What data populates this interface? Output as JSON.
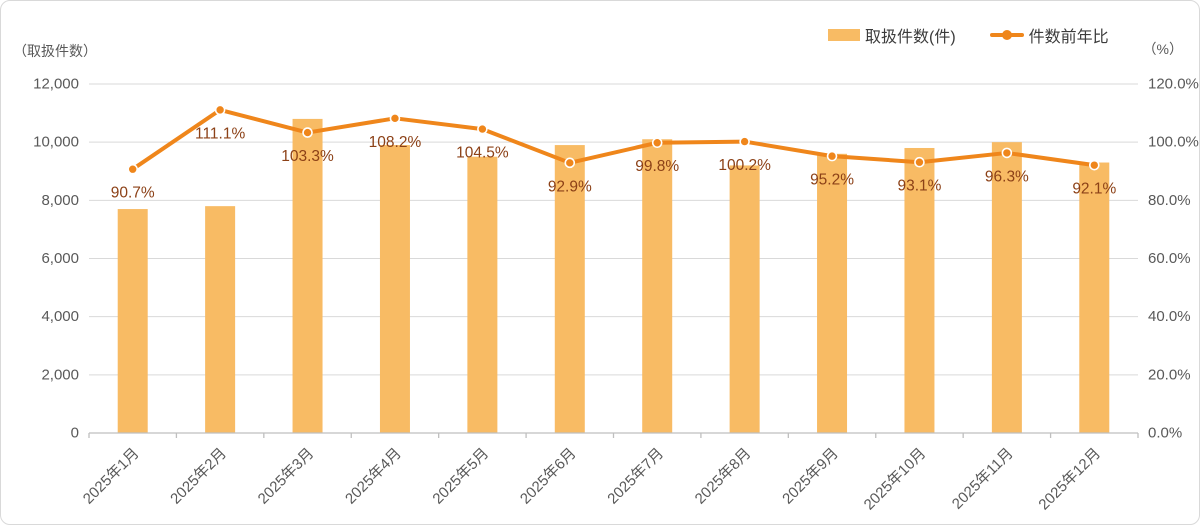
{
  "chart_data": {
    "type": "bar",
    "combo": "bar+line",
    "title": "",
    "categories": [
      "2025年1月",
      "2025年2月",
      "2025年3月",
      "2025年4月",
      "2025年5月",
      "2025年6月",
      "2025年7月",
      "2025年8月",
      "2025年9月",
      "2025年10月",
      "2025年11月",
      "2025年12月"
    ],
    "series": [
      {
        "name": "取扱件数(件)",
        "type": "bar",
        "axis": "left",
        "values": [
          7700,
          7800,
          10800,
          9900,
          9500,
          9900,
          10100,
          9200,
          9600,
          9800,
          10000,
          9300
        ]
      },
      {
        "name": "件数前年比",
        "type": "line",
        "axis": "right",
        "values": [
          90.7,
          111.1,
          103.3,
          108.2,
          104.5,
          92.9,
          99.8,
          100.2,
          95.2,
          93.1,
          96.3,
          92.1
        ],
        "point_labels": [
          "90.7%",
          "111.1%",
          "103.3%",
          "108.2%",
          "104.5%",
          "92.9%",
          "99.8%",
          "100.2%",
          "95.2%",
          "93.1%",
          "96.3%",
          "92.1%"
        ]
      }
    ],
    "left_axis": {
      "unit": "（取扱件数）",
      "min": 0,
      "max": 12000,
      "step": 2000,
      "tick_labels": [
        "0",
        "2,000",
        "4,000",
        "6,000",
        "8,000",
        "10,000",
        "12,000"
      ]
    },
    "right_axis": {
      "unit": "（%）",
      "min": 0,
      "max": 120,
      "step": 20,
      "tick_labels": [
        "0.0%",
        "20.0%",
        "40.0%",
        "60.0%",
        "80.0%",
        "100.0%",
        "120.0%"
      ]
    },
    "grid": true,
    "legend_position": "top-right"
  },
  "colors": {
    "bar": "#F8BB64",
    "line": "#EF861B",
    "marker_stroke": "#FFFFFF",
    "data_label": "#8C4117",
    "axis_text": "#595959",
    "category_text": "#595959",
    "gridline": "#D9D9D9",
    "axis_line": "#BFBFBF"
  }
}
